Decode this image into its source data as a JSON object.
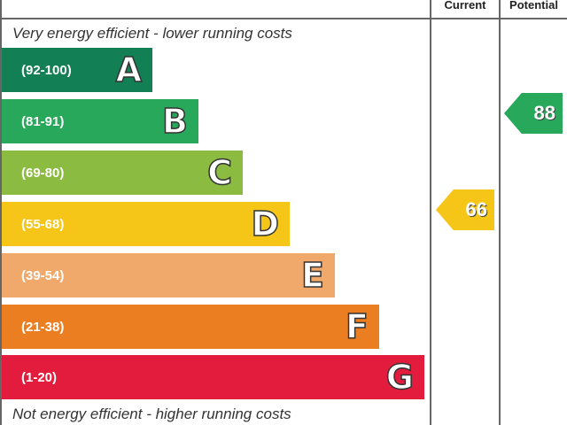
{
  "chart_data": {
    "type": "bar",
    "columns": [
      "Current",
      "Potential"
    ],
    "top_note": "Very energy efficient - lower running costs",
    "bottom_note": "Not energy efficient - higher running costs",
    "bands": [
      {
        "range": "(92-100)",
        "letter": "A",
        "color": "#127f55"
      },
      {
        "range": "(81-91)",
        "letter": "B",
        "color": "#27a85a"
      },
      {
        "range": "(69-80)",
        "letter": "C",
        "color": "#8cbb41"
      },
      {
        "range": "(55-68)",
        "letter": "D",
        "color": "#f5c518"
      },
      {
        "range": "(39-54)",
        "letter": "E",
        "color": "#f1a96b"
      },
      {
        "range": "(21-38)",
        "letter": "F",
        "color": "#ec7e22"
      },
      {
        "range": "(1-20)",
        "letter": "G",
        "color": "#e31c3d"
      }
    ],
    "current": {
      "value": "66",
      "band": "D",
      "color": "#f5c518"
    },
    "potential": {
      "value": "88",
      "band": "B",
      "color": "#27a85a"
    }
  }
}
